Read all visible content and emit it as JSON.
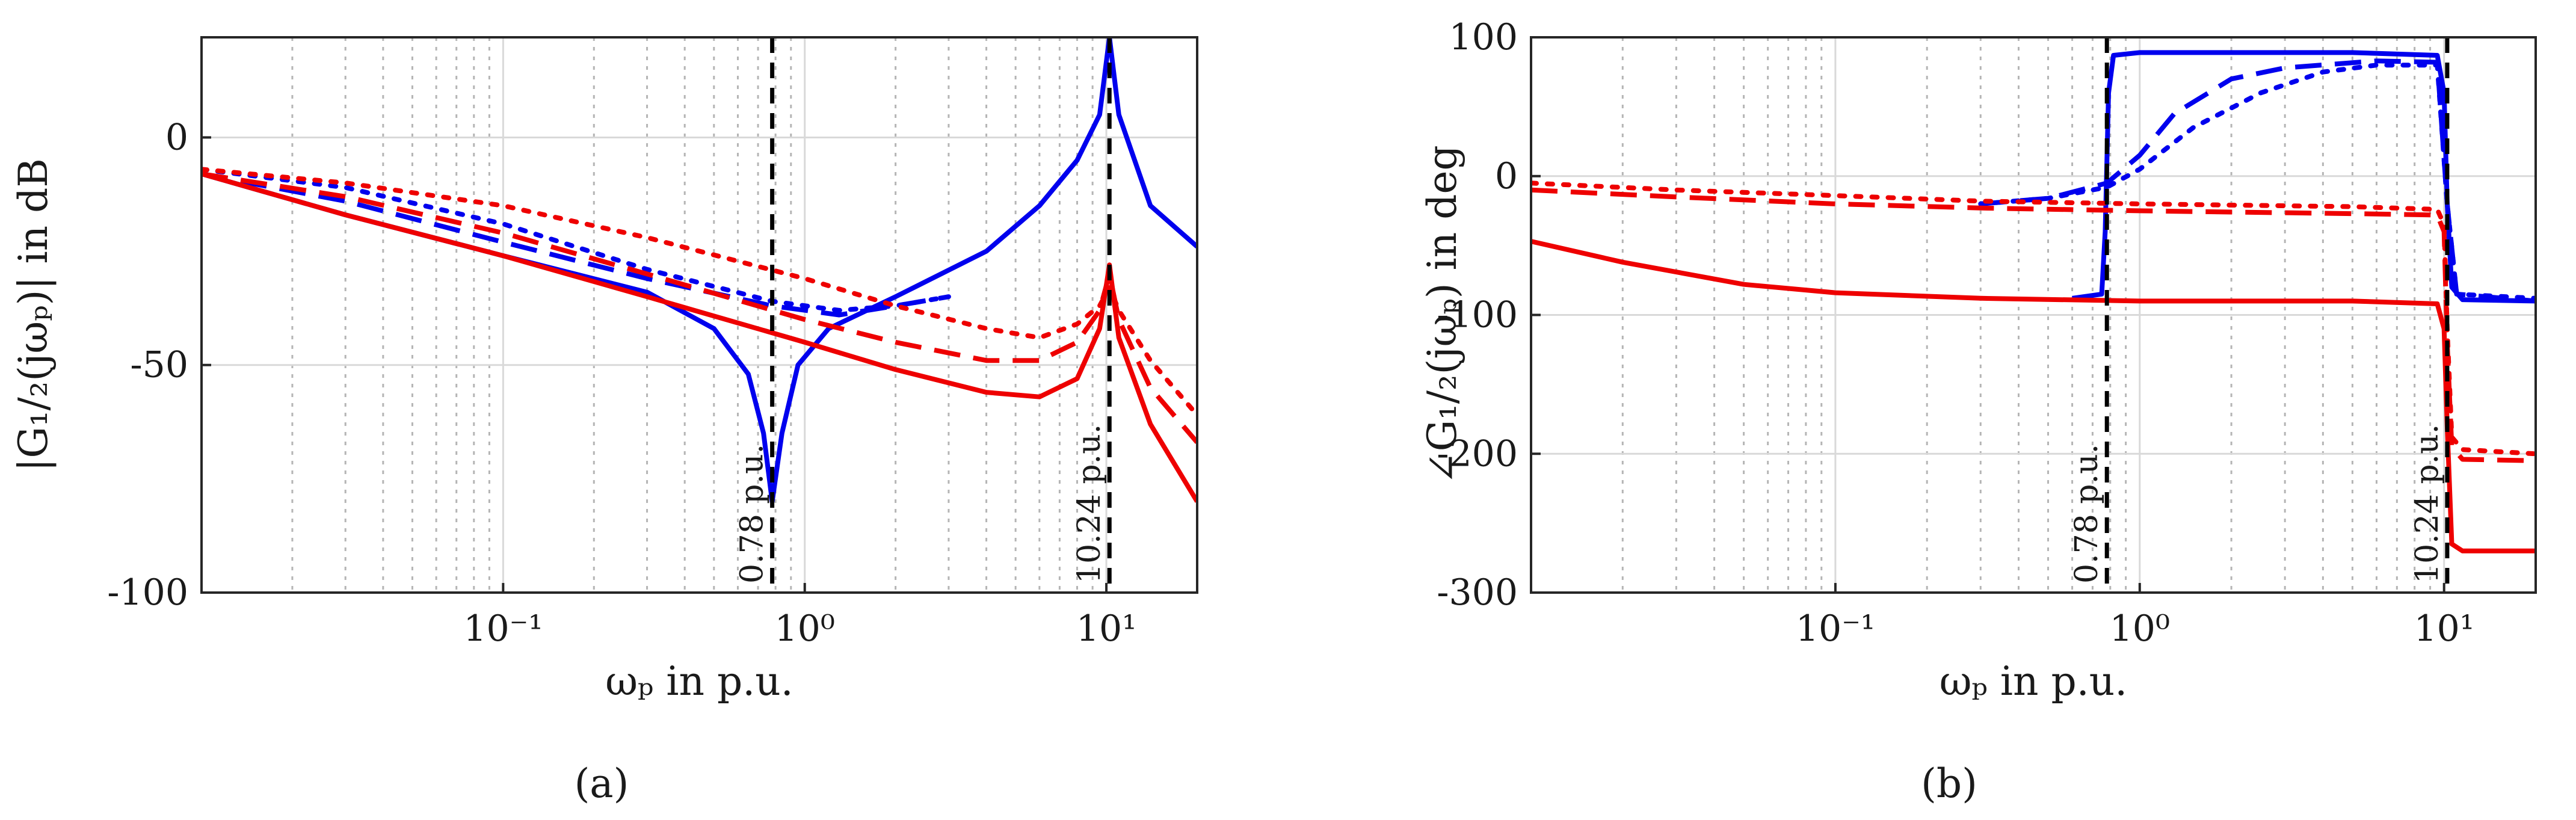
{
  "chart_data": [
    {
      "type": "line",
      "panel_label": "(a)",
      "ylabel": "|G₁/₂(jωₚ)| in dB",
      "xlabel": "ωₚ in p.u.",
      "xscale": "log",
      "xlim": [
        0.01,
        20
      ],
      "ylim": [
        -100,
        22
      ],
      "x_ticks": [
        {
          "value": 0.1,
          "label": "10⁻¹"
        },
        {
          "value": 1,
          "label": "10⁰"
        },
        {
          "value": 10,
          "label": "10¹"
        }
      ],
      "y_ticks": [
        {
          "value": 0,
          "label": "0"
        },
        {
          "value": -50,
          "label": "-50"
        },
        {
          "value": -100,
          "label": "-100"
        }
      ],
      "vlines": [
        {
          "x": 0.78,
          "label": "0.78 p.u."
        },
        {
          "x": 10.24,
          "label": "10.24 p.u."
        }
      ],
      "series": [
        {
          "name": "blue-solid",
          "color": "#0000ee",
          "dash": "solid",
          "points": [
            [
              0.01,
              -8
            ],
            [
              0.03,
              -17
            ],
            [
              0.1,
              -26
            ],
            [
              0.3,
              -34
            ],
            [
              0.5,
              -42
            ],
            [
              0.65,
              -52
            ],
            [
              0.73,
              -65
            ],
            [
              0.78,
              -80
            ],
            [
              0.84,
              -65
            ],
            [
              0.95,
              -50
            ],
            [
              1.2,
              -42
            ],
            [
              2,
              -35
            ],
            [
              4,
              -25
            ],
            [
              6,
              -15
            ],
            [
              8,
              -5
            ],
            [
              9.5,
              5
            ],
            [
              10.24,
              22
            ],
            [
              11,
              5
            ],
            [
              14,
              -15
            ],
            [
              20,
              -24
            ]
          ]
        },
        {
          "name": "blue-dashed",
          "color": "#0000ee",
          "dash": "dashed",
          "points": [
            [
              0.01,
              -8
            ],
            [
              0.03,
              -14
            ],
            [
              0.1,
              -23
            ],
            [
              0.3,
              -31
            ],
            [
              0.78,
              -37
            ],
            [
              1.3,
              -39
            ],
            [
              2,
              -37
            ],
            [
              3,
              -35
            ]
          ]
        },
        {
          "name": "blue-dotted",
          "color": "#0000ee",
          "dash": "dotted",
          "points": [
            [
              0.01,
              -7
            ],
            [
              0.03,
              -11
            ],
            [
              0.1,
              -19
            ],
            [
              0.3,
              -29
            ],
            [
              0.78,
              -36
            ],
            [
              1.3,
              -38
            ],
            [
              2,
              -37
            ],
            [
              3,
              -35
            ]
          ]
        },
        {
          "name": "red-solid",
          "color": "#ee0000",
          "dash": "solid",
          "points": [
            [
              0.01,
              -8
            ],
            [
              0.03,
              -17
            ],
            [
              0.1,
              -26
            ],
            [
              0.3,
              -35
            ],
            [
              1,
              -45
            ],
            [
              2,
              -51
            ],
            [
              4,
              -56
            ],
            [
              6,
              -57
            ],
            [
              8,
              -53
            ],
            [
              9.5,
              -42
            ],
            [
              10.24,
              -28
            ],
            [
              11,
              -44
            ],
            [
              14,
              -63
            ],
            [
              20,
              -80
            ]
          ]
        },
        {
          "name": "red-dashed",
          "color": "#ee0000",
          "dash": "dashed",
          "points": [
            [
              0.01,
              -8
            ],
            [
              0.03,
              -13
            ],
            [
              0.1,
              -21
            ],
            [
              0.3,
              -30
            ],
            [
              1,
              -40
            ],
            [
              2,
              -45
            ],
            [
              4,
              -49
            ],
            [
              6,
              -49
            ],
            [
              8,
              -45
            ],
            [
              9.5,
              -38
            ],
            [
              10.24,
              -30
            ],
            [
              11,
              -40
            ],
            [
              14,
              -55
            ],
            [
              20,
              -67
            ]
          ]
        },
        {
          "name": "red-dotted",
          "color": "#ee0000",
          "dash": "dotted",
          "points": [
            [
              0.01,
              -7
            ],
            [
              0.03,
              -10
            ],
            [
              0.1,
              -15
            ],
            [
              0.3,
              -22
            ],
            [
              1,
              -31
            ],
            [
              2,
              -37
            ],
            [
              4,
              -42
            ],
            [
              6,
              -44
            ],
            [
              8,
              -41
            ],
            [
              9.5,
              -37
            ],
            [
              10.24,
              -33
            ],
            [
              11,
              -38
            ],
            [
              14,
              -49
            ],
            [
              20,
              -61
            ]
          ]
        }
      ]
    },
    {
      "type": "line",
      "panel_label": "(b)",
      "ylabel": "∠G₁/₂(jωₚ) in deg",
      "xlabel": "ωₚ in p.u.",
      "xscale": "log",
      "xlim": [
        0.01,
        20
      ],
      "ylim": [
        -300,
        100
      ],
      "x_ticks": [
        {
          "value": 0.1,
          "label": "10⁻¹"
        },
        {
          "value": 1,
          "label": "10⁰"
        },
        {
          "value": 10,
          "label": "10¹"
        }
      ],
      "y_ticks": [
        {
          "value": 100,
          "label": "100"
        },
        {
          "value": 0,
          "label": "0"
        },
        {
          "value": -100,
          "label": "-100"
        },
        {
          "value": -200,
          "label": "-200"
        },
        {
          "value": -300,
          "label": "-300"
        }
      ],
      "vlines": [
        {
          "x": 0.78,
          "label": "0.78 p.u."
        },
        {
          "x": 10.24,
          "label": "10.24 p.u."
        }
      ],
      "series": [
        {
          "name": "blue-solid",
          "color": "#0000ee",
          "dash": "solid",
          "points": [
            [
              0.6,
              -88
            ],
            [
              0.75,
              -85
            ],
            [
              0.77,
              -40
            ],
            [
              0.79,
              60
            ],
            [
              0.82,
              87
            ],
            [
              1,
              89
            ],
            [
              5,
              89
            ],
            [
              9.5,
              87
            ],
            [
              10,
              60
            ],
            [
              10.24,
              -20
            ],
            [
              10.6,
              -80
            ],
            [
              11.5,
              -89
            ],
            [
              20,
              -90
            ]
          ]
        },
        {
          "name": "blue-dashed",
          "color": "#0000ee",
          "dash": "dashed",
          "points": [
            [
              0.3,
              -20
            ],
            [
              0.5,
              -16
            ],
            [
              0.78,
              -5
            ],
            [
              1,
              15
            ],
            [
              1.3,
              45
            ],
            [
              2,
              70
            ],
            [
              3,
              78
            ],
            [
              6,
              83
            ],
            [
              9.5,
              82
            ],
            [
              10.24,
              -20
            ],
            [
              11,
              -85
            ],
            [
              20,
              -90
            ]
          ]
        },
        {
          "name": "blue-dotted",
          "color": "#0000ee",
          "dash": "dotted",
          "points": [
            [
              0.3,
              -20
            ],
            [
              0.5,
              -16
            ],
            [
              0.78,
              -8
            ],
            [
              1,
              5
            ],
            [
              1.5,
              35
            ],
            [
              2.5,
              60
            ],
            [
              4,
              75
            ],
            [
              6,
              80
            ],
            [
              9.5,
              80
            ],
            [
              10.24,
              -20
            ],
            [
              11,
              -85
            ],
            [
              20,
              -88
            ]
          ]
        },
        {
          "name": "red-solid",
          "color": "#ee0000",
          "dash": "solid",
          "points": [
            [
              0.01,
              -47
            ],
            [
              0.02,
              -62
            ],
            [
              0.05,
              -78
            ],
            [
              0.1,
              -84
            ],
            [
              0.3,
              -88
            ],
            [
              1,
              -90
            ],
            [
              5,
              -90
            ],
            [
              9.5,
              -92
            ],
            [
              10,
              -110
            ],
            [
              10.24,
              -180
            ],
            [
              10.6,
              -265
            ],
            [
              11.5,
              -270
            ],
            [
              20,
              -270
            ]
          ]
        },
        {
          "name": "red-dashed",
          "color": "#ee0000",
          "dash": "dashed",
          "points": [
            [
              0.01,
              -10
            ],
            [
              0.03,
              -15
            ],
            [
              0.1,
              -20
            ],
            [
              0.3,
              -23
            ],
            [
              1,
              -25
            ],
            [
              5,
              -27
            ],
            [
              9.5,
              -28
            ],
            [
              10,
              -40
            ],
            [
              10.24,
              -120
            ],
            [
              10.6,
              -195
            ],
            [
              11.5,
              -204
            ],
            [
              20,
              -205
            ]
          ]
        },
        {
          "name": "red-dotted",
          "color": "#ee0000",
          "dash": "dotted",
          "points": [
            [
              0.01,
              -5
            ],
            [
              0.03,
              -10
            ],
            [
              0.1,
              -14
            ],
            [
              0.3,
              -18
            ],
            [
              1,
              -20
            ],
            [
              5,
              -22
            ],
            [
              9.5,
              -24
            ],
            [
              10,
              -35
            ],
            [
              10.24,
              -110
            ],
            [
              10.6,
              -188
            ],
            [
              11.5,
              -197
            ],
            [
              20,
              -200
            ]
          ]
        }
      ]
    }
  ]
}
